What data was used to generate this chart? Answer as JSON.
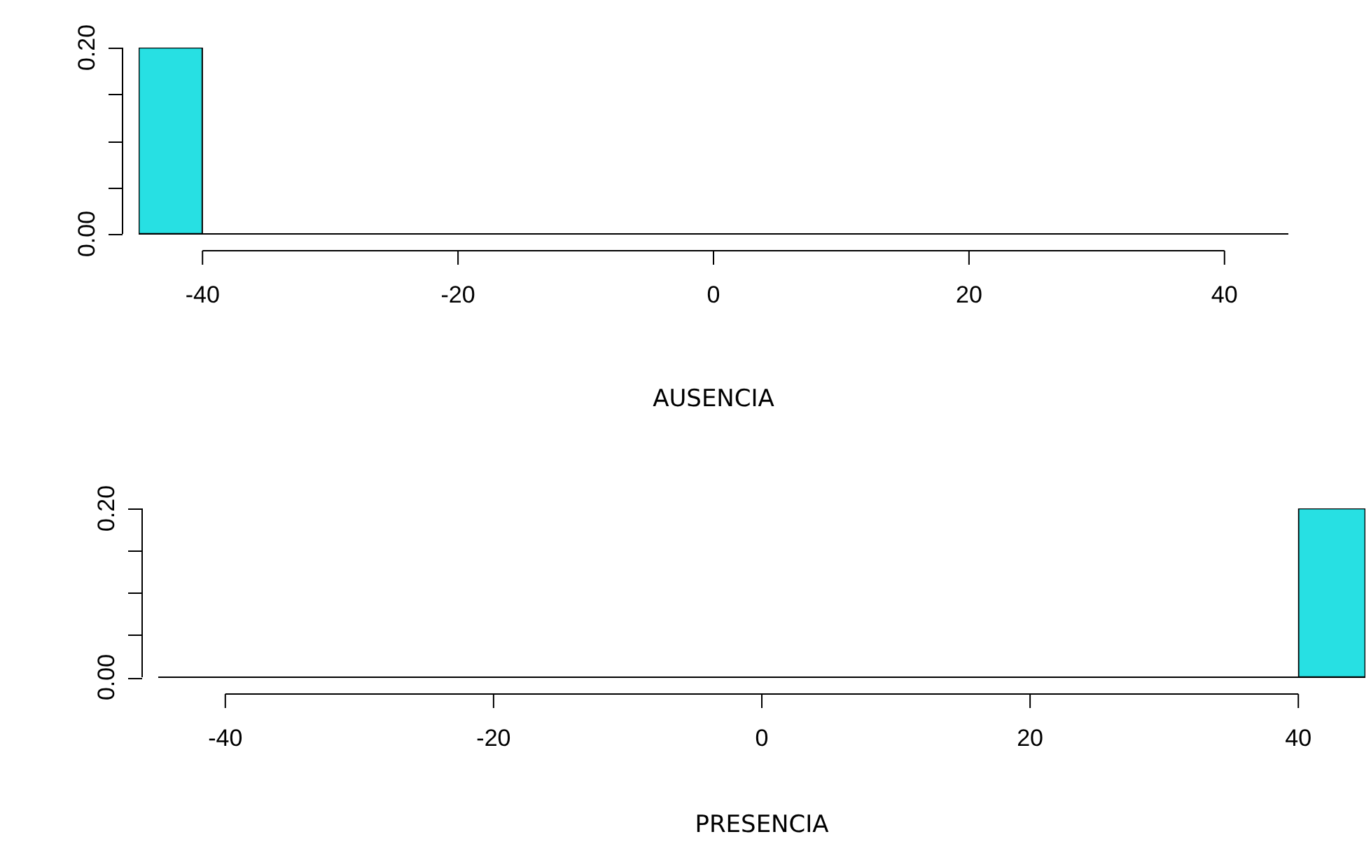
{
  "chart_data": [
    {
      "type": "histogram",
      "xlabel": "AUSENCIA",
      "color": "#27e0e3",
      "bins": [
        -45,
        -40,
        -35,
        -30,
        -25,
        -20,
        -15,
        -10,
        -5,
        0,
        5,
        10,
        15,
        20,
        25,
        30,
        35,
        40,
        45
      ],
      "values": [
        0.2,
        0,
        0,
        0,
        0,
        0,
        0,
        0,
        0,
        0,
        0,
        0,
        0,
        0,
        0,
        0,
        0,
        0
      ],
      "xlim": [
        -45,
        45
      ],
      "xticks": [
        -40,
        -20,
        0,
        20,
        40
      ],
      "ylim": [
        0,
        0.2
      ],
      "yticks": [
        {
          "value": 0,
          "label": "0.00"
        },
        {
          "value": 0.05,
          "label": null
        },
        {
          "value": 0.1,
          "label": null
        },
        {
          "value": 0.15,
          "label": null
        },
        {
          "value": 0.2,
          "label": "0.20"
        }
      ]
    },
    {
      "type": "histogram",
      "xlabel": "PRESENCIA",
      "color": "#27e0e3",
      "bins": [
        -45,
        -40,
        -35,
        -30,
        -25,
        -20,
        -15,
        -10,
        -5,
        0,
        5,
        10,
        15,
        20,
        25,
        30,
        35,
        40,
        45
      ],
      "values": [
        0,
        0,
        0,
        0,
        0,
        0,
        0,
        0,
        0,
        0,
        0,
        0,
        0,
        0,
        0,
        0,
        0,
        0.2
      ],
      "xlim": [
        -45,
        45
      ],
      "xticks": [
        -40,
        -20,
        0,
        20,
        40
      ],
      "ylim": [
        0,
        0.2
      ],
      "yticks": [
        {
          "value": 0,
          "label": "0.00"
        },
        {
          "value": 0.05,
          "label": null
        },
        {
          "value": 0.1,
          "label": null
        },
        {
          "value": 0.15,
          "label": null
        },
        {
          "value": 0.2,
          "label": "0.20"
        }
      ]
    }
  ]
}
